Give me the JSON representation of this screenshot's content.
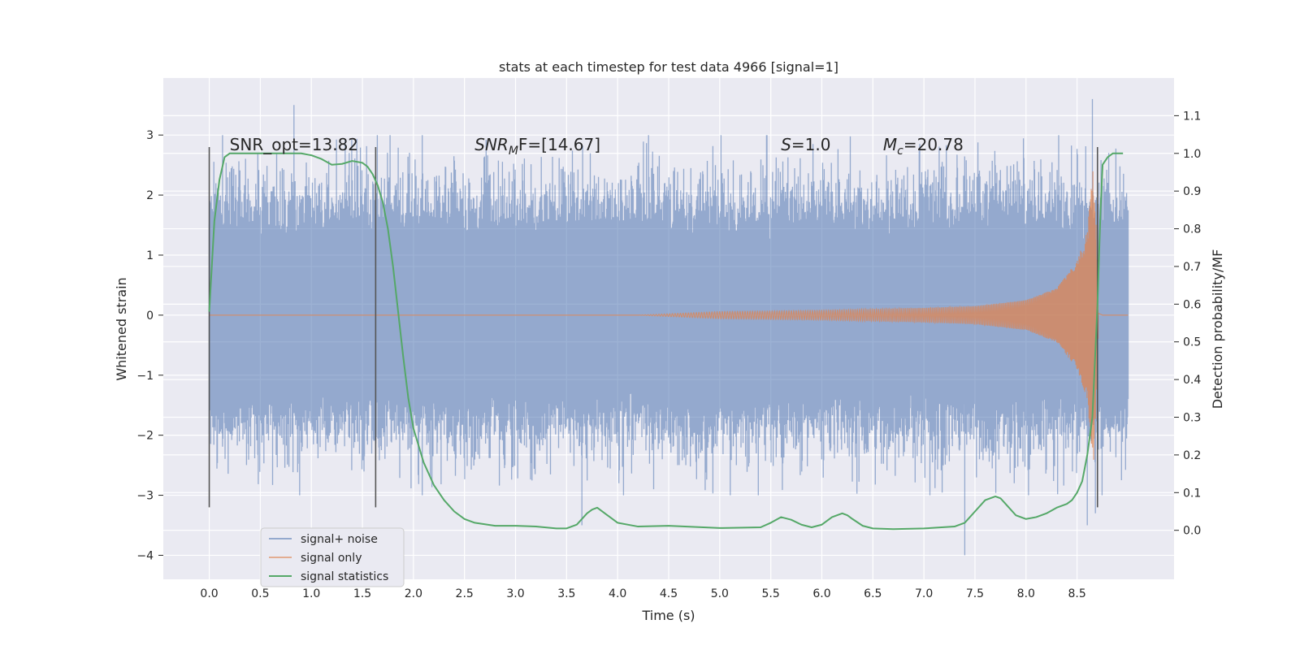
{
  "chart_data": {
    "type": "line",
    "title": "stats at each timestep for test data 4966 [signal=1]",
    "xlabel": "Time (s)",
    "ylabel": "Whitened strain",
    "y2label": "Detection probability/MF",
    "xlim": [
      -0.45,
      9.45
    ],
    "ylim": [
      -4.4,
      3.95
    ],
    "y2lim": [
      -0.13,
      1.2
    ],
    "x_ticks": [
      "0.0",
      "0.5",
      "1.0",
      "1.5",
      "2.0",
      "2.5",
      "3.0",
      "3.5",
      "4.0",
      "4.5",
      "5.0",
      "5.5",
      "6.0",
      "6.5",
      "7.0",
      "7.5",
      "8.0",
      "8.5"
    ],
    "y_ticks": [
      "3",
      "2",
      "1",
      "0",
      "−1",
      "−2",
      "−3",
      "−4"
    ],
    "y2_ticks": [
      "1.1",
      "1.0",
      "0.9",
      "0.8",
      "0.7",
      "0.6",
      "0.5",
      "0.4",
      "0.3",
      "0.2",
      "0.1",
      "0.0"
    ],
    "grid": true,
    "legend_position": "lower-left",
    "annotations": [
      {
        "text": "SNR_opt=13.82",
        "x": 0.2,
        "y": 2.8
      },
      {
        "text": "SNR",
        "sub": "M",
        "rest": "F=[14.67]",
        "x": 2.6,
        "y": 2.8
      },
      {
        "text": "S",
        "rest": "=1.0",
        "x": 5.6,
        "y": 2.8
      },
      {
        "text": "M",
        "sub": "c",
        "rest": "=20.78",
        "x": 6.6,
        "y": 2.8
      }
    ],
    "vlines": [
      {
        "x": 0.0,
        "y0": -3.2,
        "y1": 2.8
      },
      {
        "x": 1.63,
        "y0": -3.2,
        "y1": 2.8
      },
      {
        "x": 8.7,
        "y0": -3.2,
        "y1": 2.8
      }
    ],
    "series": [
      {
        "name": "signal+ noise",
        "color": "#4c72b0",
        "alpha": 0.5,
        "t_start": 0.0,
        "t_end": 9.0,
        "typical_amplitude": 1.6,
        "extremes": [
          [
            0.83,
            3.5
          ],
          [
            3.65,
            -3.5
          ],
          [
            7.4,
            -4.0
          ],
          [
            8.65,
            3.6
          ],
          [
            8.6,
            -3.5
          ],
          [
            8.68,
            -3.3
          ]
        ]
      },
      {
        "name": "signal only",
        "color": "#dd8452",
        "t_start": 0.0,
        "t_end": 9.0,
        "chirp_envelope": [
          [
            4.2,
            0.0
          ],
          [
            5.0,
            0.06
          ],
          [
            6.0,
            0.08
          ],
          [
            7.0,
            0.12
          ],
          [
            7.5,
            0.15
          ],
          [
            8.0,
            0.25
          ],
          [
            8.3,
            0.45
          ],
          [
            8.5,
            0.9
          ],
          [
            8.6,
            1.4
          ],
          [
            8.66,
            2.5
          ],
          [
            8.7,
            1.0
          ],
          [
            8.75,
            0.0
          ]
        ]
      },
      {
        "name": "signal statistics",
        "color": "#55a868",
        "axis": "right",
        "x": [
          0.0,
          0.05,
          0.1,
          0.15,
          0.2,
          0.3,
          0.4,
          0.5,
          0.7,
          0.9,
          1.0,
          1.1,
          1.2,
          1.3,
          1.4,
          1.5,
          1.55,
          1.6,
          1.65,
          1.7,
          1.75,
          1.8,
          1.85,
          1.9,
          1.95,
          2.0,
          2.1,
          2.2,
          2.3,
          2.4,
          2.5,
          2.6,
          2.8,
          3.0,
          3.2,
          3.4,
          3.5,
          3.6,
          3.7,
          3.75,
          3.8,
          3.9,
          4.0,
          4.2,
          4.5,
          5.0,
          5.4,
          5.5,
          5.6,
          5.7,
          5.8,
          5.9,
          6.0,
          6.1,
          6.2,
          6.25,
          6.3,
          6.4,
          6.5,
          6.7,
          7.0,
          7.3,
          7.4,
          7.5,
          7.6,
          7.7,
          7.75,
          7.8,
          7.9,
          8.0,
          8.1,
          8.2,
          8.3,
          8.4,
          8.45,
          8.5,
          8.55,
          8.6,
          8.65,
          8.7,
          8.73,
          8.75,
          8.8,
          8.85,
          8.9,
          8.95
        ],
        "values": [
          0.58,
          0.82,
          0.93,
          0.99,
          1.0,
          1.0,
          1.0,
          1.0,
          1.0,
          1.0,
          0.995,
          0.985,
          0.97,
          0.972,
          0.98,
          0.975,
          0.965,
          0.945,
          0.915,
          0.87,
          0.8,
          0.7,
          0.58,
          0.46,
          0.35,
          0.27,
          0.18,
          0.12,
          0.08,
          0.05,
          0.03,
          0.02,
          0.012,
          0.012,
          0.01,
          0.005,
          0.005,
          0.015,
          0.045,
          0.055,
          0.06,
          0.04,
          0.02,
          0.01,
          0.012,
          0.006,
          0.008,
          0.02,
          0.035,
          0.028,
          0.015,
          0.008,
          0.015,
          0.035,
          0.045,
          0.04,
          0.03,
          0.012,
          0.005,
          0.003,
          0.005,
          0.01,
          0.02,
          0.05,
          0.08,
          0.09,
          0.085,
          0.07,
          0.04,
          0.03,
          0.035,
          0.045,
          0.06,
          0.07,
          0.08,
          0.1,
          0.13,
          0.2,
          0.3,
          0.6,
          0.85,
          0.97,
          0.99,
          1.0,
          1.0,
          1.0
        ]
      }
    ]
  }
}
